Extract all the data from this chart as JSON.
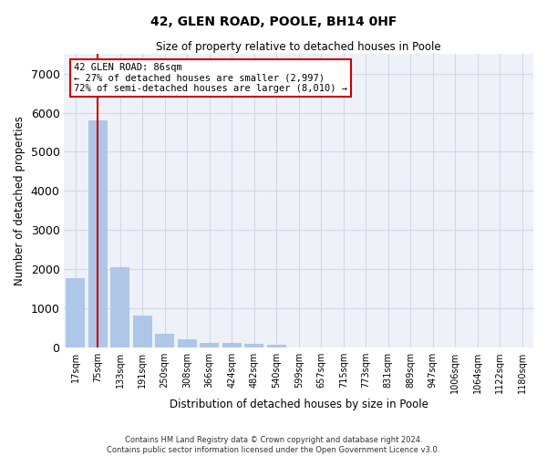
{
  "title": "42, GLEN ROAD, POOLE, BH14 0HF",
  "subtitle": "Size of property relative to detached houses in Poole",
  "xlabel": "Distribution of detached houses by size in Poole",
  "ylabel": "Number of detached properties",
  "categories": [
    "17sqm",
    "75sqm",
    "133sqm",
    "191sqm",
    "250sqm",
    "308sqm",
    "366sqm",
    "424sqm",
    "482sqm",
    "540sqm",
    "599sqm",
    "657sqm",
    "715sqm",
    "773sqm",
    "831sqm",
    "889sqm",
    "947sqm",
    "1006sqm",
    "1064sqm",
    "1122sqm",
    "1180sqm"
  ],
  "values": [
    1780,
    5800,
    2060,
    820,
    340,
    200,
    120,
    110,
    100,
    70,
    0,
    0,
    0,
    0,
    0,
    0,
    0,
    0,
    0,
    0,
    0
  ],
  "bar_color": "#aec6e8",
  "highlight_bar_index": 1,
  "highlight_line_color": "#cc0000",
  "grid_color": "#d0d8e8",
  "background_color": "#eef2f8",
  "annotation_text": "42 GLEN ROAD: 86sqm\n← 27% of detached houses are smaller (2,997)\n72% of semi-detached houses are larger (8,010) →",
  "annotation_box_color": "#ffffff",
  "annotation_border_color": "#cc0000",
  "ylim": [
    0,
    7500
  ],
  "yticks": [
    0,
    1000,
    2000,
    3000,
    4000,
    5000,
    6000,
    7000
  ],
  "footer_line1": "Contains HM Land Registry data © Crown copyright and database right 2024.",
  "footer_line2": "Contains public sector information licensed under the Open Government Licence v3.0."
}
